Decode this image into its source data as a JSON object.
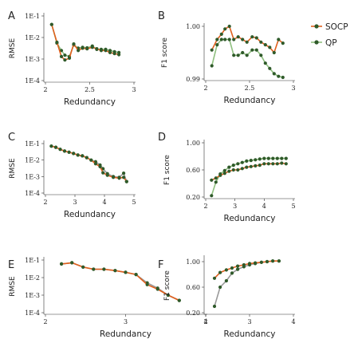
{
  "legend": {
    "entries": [
      {
        "name": "SOCP",
        "color": "#e0601d"
      },
      {
        "name": "QP",
        "color": "#8fc07f"
      }
    ]
  },
  "marker_color": "#2f5a2a",
  "line_colors": {
    "SOCP": "#e0601d",
    "QP": "#8fc07f",
    "QP_gray": "#9a9a9a"
  },
  "chart_data": [
    {
      "panel": "A",
      "type": "line",
      "xlabel": "Redundancy",
      "ylabel": "RMSE",
      "xlim": [
        2,
        3
      ],
      "xticks": [
        "2",
        "2.5",
        "3"
      ],
      "yscale": "log",
      "ylim": [
        -4,
        -1
      ],
      "yticks": [
        "1E-1",
        "1E-2",
        "1E-3",
        "1E-4"
      ],
      "series": [
        {
          "name": "SOCP",
          "x": [
            2.07,
            2.13,
            2.18,
            2.22,
            2.27,
            2.32,
            2.37,
            2.42,
            2.47,
            2.53,
            2.58,
            2.63,
            2.68,
            2.73,
            2.78,
            2.83
          ],
          "y": [
            0.04,
            0.006,
            0.0013,
            0.0009,
            0.0011,
            0.005,
            0.0025,
            0.0032,
            0.003,
            0.0035,
            0.003,
            0.0025,
            0.0025,
            0.002,
            0.0018,
            0.0016
          ]
        },
        {
          "name": "QP",
          "x": [
            2.07,
            2.13,
            2.18,
            2.22,
            2.27,
            2.32,
            2.37,
            2.42,
            2.47,
            2.53,
            2.58,
            2.63,
            2.68,
            2.73,
            2.78,
            2.83
          ],
          "y": [
            0.04,
            0.0055,
            0.0025,
            0.0015,
            0.0013,
            0.0045,
            0.0032,
            0.0035,
            0.0033,
            0.004,
            0.0028,
            0.0028,
            0.0028,
            0.0025,
            0.0022,
            0.002
          ]
        }
      ]
    },
    {
      "panel": "B",
      "type": "line",
      "xlabel": "Redundancy",
      "ylabel": "F1 score",
      "xlim": [
        2,
        3
      ],
      "xticks": [
        "2",
        "2.5",
        "3"
      ],
      "ylim": [
        0.99,
        1.0
      ],
      "yticks": [
        "1.00",
        "0.99"
      ],
      "series": [
        {
          "name": "SOCP",
          "x": [
            2.07,
            2.13,
            2.18,
            2.22,
            2.27,
            2.32,
            2.37,
            2.42,
            2.47,
            2.53,
            2.58,
            2.63,
            2.68,
            2.73,
            2.78,
            2.83,
            2.88
          ],
          "y": [
            0.9955,
            0.9975,
            0.9985,
            0.9995,
            1.0,
            0.9975,
            0.998,
            0.9975,
            0.997,
            0.998,
            0.9978,
            0.997,
            0.9965,
            0.996,
            0.995,
            0.9975,
            0.9968
          ]
        },
        {
          "name": "QP",
          "x": [
            2.07,
            2.13,
            2.18,
            2.22,
            2.27,
            2.32,
            2.37,
            2.42,
            2.47,
            2.53,
            2.58,
            2.63,
            2.68,
            2.73,
            2.78,
            2.83,
            2.88
          ],
          "y": [
            0.9925,
            0.9965,
            0.9975,
            0.9975,
            0.9975,
            0.9945,
            0.9945,
            0.995,
            0.9945,
            0.9955,
            0.9955,
            0.9945,
            0.993,
            0.992,
            0.991,
            0.9905,
            0.9903
          ]
        }
      ]
    },
    {
      "panel": "C",
      "type": "line",
      "xlabel": "Redundancy",
      "ylabel": "RMSE",
      "xlim": [
        2,
        5
      ],
      "xticks": [
        "2",
        "3",
        "4",
        "5"
      ],
      "yscale": "log",
      "ylim": [
        -4,
        -1
      ],
      "yticks": [
        "1E-1",
        "1E-2",
        "1E-3",
        "1E-4"
      ],
      "series": [
        {
          "name": "SOCP",
          "x": [
            2.2,
            2.35,
            2.5,
            2.65,
            2.8,
            2.95,
            3.1,
            3.25,
            3.4,
            3.55,
            3.7,
            3.85,
            3.95,
            4.1,
            4.3,
            4.5,
            4.65,
            4.75
          ],
          "y": [
            0.07,
            0.06,
            0.045,
            0.035,
            0.03,
            0.025,
            0.02,
            0.018,
            0.014,
            0.01,
            0.006,
            0.004,
            0.0017,
            0.0012,
            0.0009,
            0.0008,
            0.0009,
            0.0005
          ]
        },
        {
          "name": "QP",
          "x": [
            2.2,
            2.35,
            2.5,
            2.65,
            2.8,
            2.95,
            3.1,
            3.25,
            3.4,
            3.55,
            3.7,
            3.85,
            3.95,
            4.1,
            4.3,
            4.5,
            4.65,
            4.75
          ],
          "y": [
            0.07,
            0.06,
            0.045,
            0.035,
            0.03,
            0.025,
            0.02,
            0.018,
            0.014,
            0.01,
            0.008,
            0.005,
            0.003,
            0.0015,
            0.001,
            0.0009,
            0.0016,
            0.0005
          ]
        }
      ]
    },
    {
      "panel": "D",
      "type": "line",
      "xlabel": "Redundancy",
      "ylabel": "F1 score",
      "xlim": [
        2,
        5
      ],
      "xticks": [
        "2",
        "3",
        "4",
        "5"
      ],
      "ylim": [
        0.2,
        1.0
      ],
      "yticks": [
        "1.00",
        "0.60",
        "0.20"
      ],
      "series": [
        {
          "name": "SOCP",
          "x": [
            2.2,
            2.35,
            2.5,
            2.65,
            2.8,
            2.95,
            3.1,
            3.25,
            3.4,
            3.55,
            3.7,
            3.85,
            4.0,
            4.15,
            4.3,
            4.45,
            4.6,
            4.75
          ],
          "y": [
            0.45,
            0.48,
            0.52,
            0.55,
            0.58,
            0.6,
            0.6,
            0.62,
            0.64,
            0.65,
            0.66,
            0.67,
            0.69,
            0.69,
            0.69,
            0.69,
            0.7,
            0.69
          ]
        },
        {
          "name": "QP",
          "x": [
            2.2,
            2.35,
            2.5,
            2.65,
            2.8,
            2.95,
            3.1,
            3.25,
            3.4,
            3.55,
            3.7,
            3.85,
            4.0,
            4.15,
            4.3,
            4.45,
            4.6,
            4.75
          ],
          "y": [
            0.22,
            0.42,
            0.54,
            0.59,
            0.64,
            0.67,
            0.69,
            0.71,
            0.73,
            0.74,
            0.75,
            0.76,
            0.77,
            0.77,
            0.77,
            0.77,
            0.77,
            0.77
          ]
        }
      ]
    },
    {
      "panel": "E",
      "type": "line",
      "xlabel": "Redundancy",
      "ylabel": "RMSE",
      "xlim": [
        2,
        4
      ],
      "xticks": [
        "2",
        "3",
        "4"
      ],
      "yscale": "log",
      "ylim": [
        -4,
        -1
      ],
      "yticks": [
        "1E-1",
        "1E-2",
        "1E-3",
        "1E-4"
      ],
      "series": [
        {
          "name": "SOCP",
          "x": [
            2.2,
            2.33,
            2.47,
            2.6,
            2.73,
            2.87,
            3.0,
            3.13,
            3.27,
            3.4,
            3.53,
            3.67
          ],
          "y": [
            0.06,
            0.07,
            0.04,
            0.03,
            0.03,
            0.025,
            0.02,
            0.015,
            0.004,
            0.0022,
            0.001,
            0.0005
          ]
        },
        {
          "name": "QP",
          "x": [
            2.2,
            2.33,
            2.47,
            2.6,
            2.73,
            2.87,
            3.0,
            3.13,
            3.27,
            3.4,
            3.53,
            3.67
          ],
          "y": [
            0.06,
            0.07,
            0.04,
            0.03,
            0.03,
            0.025,
            0.02,
            0.015,
            0.005,
            0.0025,
            0.001,
            0.0005
          ]
        }
      ]
    },
    {
      "panel": "F",
      "type": "line",
      "xlabel": "Redundancy",
      "ylabel": "F1 score",
      "xlim": [
        2,
        4
      ],
      "xticks": [
        "2",
        "3",
        "4"
      ],
      "ylim": [
        0.2,
        1.05
      ],
      "yticks": [
        "1.00",
        "0.60",
        "0.20"
      ],
      "series": [
        {
          "name": "SOCP",
          "x": [
            2.2,
            2.33,
            2.47,
            2.6,
            2.73,
            2.87,
            3.0,
            3.13,
            3.27,
            3.4,
            3.53,
            3.67
          ],
          "y": [
            0.74,
            0.83,
            0.87,
            0.9,
            0.93,
            0.95,
            0.97,
            0.98,
            0.99,
            1.0,
            1.01,
            1.01
          ]
        },
        {
          "name": "QP",
          "x": [
            2.2,
            2.33,
            2.47,
            2.6,
            2.73,
            2.87,
            3.0,
            3.13,
            3.27,
            3.4,
            3.53,
            3.67
          ],
          "y": [
            0.3,
            0.6,
            0.7,
            0.82,
            0.88,
            0.92,
            0.95,
            0.97,
            0.99,
            1.0,
            1.01,
            1.01
          ]
        }
      ]
    }
  ]
}
